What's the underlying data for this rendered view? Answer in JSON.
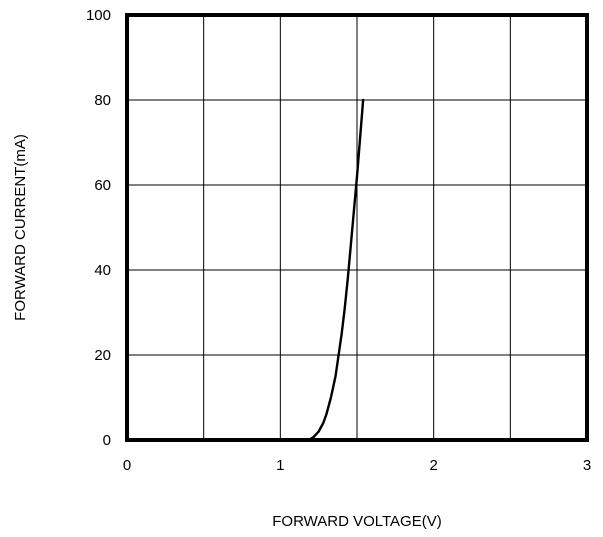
{
  "chart_data": {
    "type": "line",
    "title": "",
    "xlabel": "FORWARD VOLTAGE(V)",
    "ylabel": "FORWARD CURRENT(mA)",
    "xlim": [
      0,
      3
    ],
    "ylim": [
      0,
      100
    ],
    "x_ticks": [
      0,
      1,
      2,
      3
    ],
    "y_ticks": [
      0,
      20,
      40,
      60,
      80,
      100
    ],
    "x_grid": [
      0.5,
      1,
      1.5,
      2,
      2.5
    ],
    "y_grid": [
      20,
      40,
      60,
      80
    ],
    "grid": true,
    "legend": "none",
    "series": [
      {
        "color": "#000000",
        "x": [
          1.15,
          1.18,
          1.2,
          1.22,
          1.25,
          1.28,
          1.3,
          1.33,
          1.36,
          1.38,
          1.4,
          1.42,
          1.44,
          1.46,
          1.48,
          1.5,
          1.52,
          1.54
        ],
        "y": [
          0,
          0.1,
          0.3,
          0.8,
          2,
          4,
          6,
          10,
          15,
          20,
          25,
          31,
          38,
          46,
          54,
          62,
          71,
          80
        ]
      }
    ]
  }
}
